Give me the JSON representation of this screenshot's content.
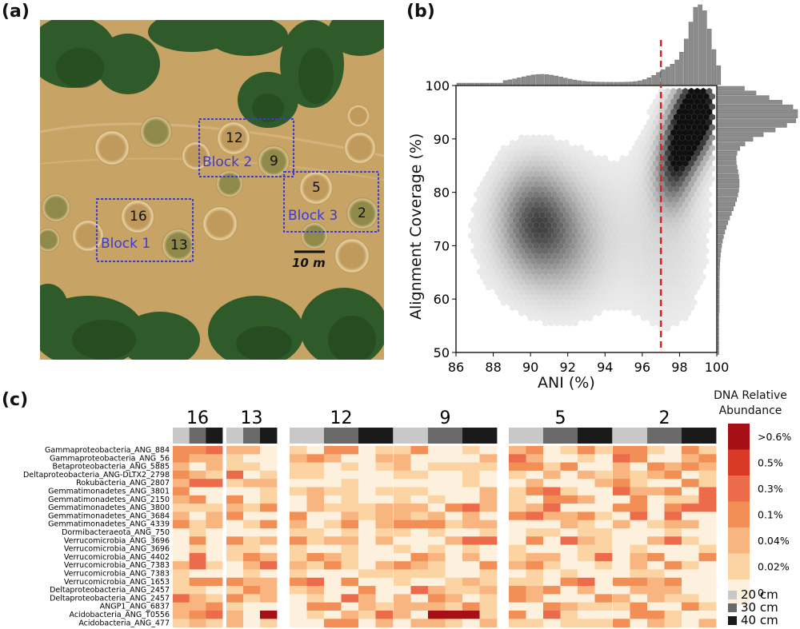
{
  "panels": {
    "a": "(a)",
    "b": "(b)",
    "c": "(c)"
  },
  "aerial": {
    "plots": [
      {
        "label": "12"
      },
      {
        "label": "9"
      },
      {
        "label": "5"
      },
      {
        "label": "2"
      },
      {
        "label": "16"
      },
      {
        "label": "13"
      }
    ],
    "blocks": [
      "Block 1",
      "Block 2",
      "Block 3"
    ],
    "scale_label": "10 m",
    "colors": {
      "block": "#3b3bd6",
      "grass": "#c9a46a",
      "tree": "#2f5a2a"
    }
  },
  "chart_data": [
    {
      "type": "heatmap",
      "variant": "hexbin-with-marginal-histograms",
      "xlabel": "ANI (%)",
      "ylabel": "Alignment Coverage (%)",
      "xlim": [
        86,
        100
      ],
      "ylim": [
        50,
        100
      ],
      "xticks": [
        "86",
        "88",
        "90",
        "92",
        "94",
        "96",
        "98",
        "100"
      ],
      "yticks": [
        "50",
        "60",
        "70",
        "80",
        "90",
        "100"
      ],
      "threshold_ani": 97,
      "threshold_color": "#e02020",
      "hotspots": [
        {
          "x": 99.1,
          "y": 96,
          "density": 1.0
        },
        {
          "x": 98.6,
          "y": 93,
          "density": 0.85
        },
        {
          "x": 98.2,
          "y": 90,
          "density": 0.6
        },
        {
          "x": 97.8,
          "y": 86,
          "density": 0.4
        },
        {
          "x": 97.5,
          "y": 82,
          "density": 0.3
        },
        {
          "x": 90.6,
          "y": 74,
          "density": 0.35
        },
        {
          "x": 89.8,
          "y": 75,
          "density": 0.3
        },
        {
          "x": 92,
          "y": 71,
          "density": 0.2
        }
      ]
    },
    {
      "type": "heatmap",
      "legend_title": "DNA Relative Abundance",
      "legend_levels": [
        ">0.6%",
        "0.5%",
        "0.3%",
        "0.1%",
        "0.04%",
        "0.02%",
        "0"
      ],
      "legend_colors": [
        "#a50f15",
        "#d93a25",
        "#ec6b4a",
        "#f28f57",
        "#f9b57f",
        "#fcd3a3",
        "#fdf0dd"
      ],
      "depth_levels": [
        {
          "label": "20 cm",
          "color": "#c8c8c8"
        },
        {
          "label": "30 cm",
          "color": "#6a6a6a"
        },
        {
          "label": "40 cm",
          "color": "#1a1a1a"
        }
      ],
      "plots": [
        {
          "name": "16",
          "columns": 3
        },
        {
          "name": "13",
          "columns": 3
        },
        {
          "name": "12",
          "columns": 6
        },
        {
          "name": "9",
          "columns": 6
        },
        {
          "name": "5",
          "columns": 6
        },
        {
          "name": "2",
          "columns": 6
        }
      ],
      "rows": [
        "Gammaproteobacteria_ANG_884",
        "Gammaproteobacteria_ANG_56",
        "Betaproteobacteria_ANG_5885",
        "Deltaproteobacteria_ANG-DLTX2_2798",
        "Rokubacteria_ANG_2807",
        "Gemmatimonadetes_ANG_3801",
        "Gemmatimonadetes_ANG_2150",
        "Gemmatimonadetes_ANG_3800",
        "Gemmatimonadetes_ANG_3684",
        "Gemmatimonadetes_ANG_4339",
        "Dormibacteraeota_ANG_750",
        "Verrucomicrobia_ANG_3696",
        "Verrucomicrobia_ANG_3696",
        "Verrucomicrobia_ANG_4402",
        "Verrucomicrobia_ANG_7383",
        "Verrucomicrobia_ANG_7383",
        "Verrucomicrobia_ANG_1653",
        "Deltaproteobacteria_ANG_2457",
        "Deltaproteobacteria_ANG_2457",
        "ANGP1_ANG_6837",
        "Acidobacteria_ANG_T0556",
        "Acidobacteria_ANG_477"
      ]
    }
  ]
}
